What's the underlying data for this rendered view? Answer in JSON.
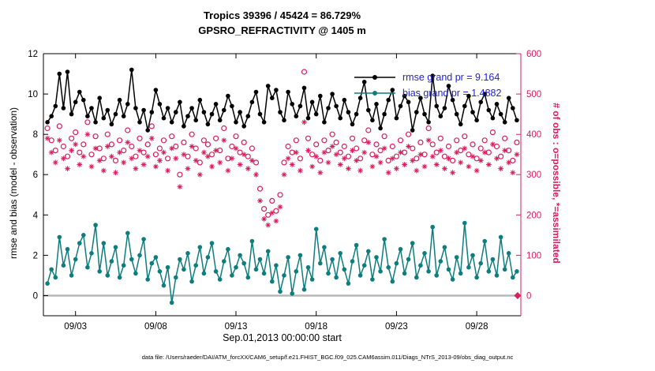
{
  "titles": {
    "line1": "Tropics 39396 / 45424 = 86.729%",
    "line2": "GPSRO_REFRACTIVITY @ 1405 m"
  },
  "caption": "data file: /Users/raeder/DAI/ATM_forcXX/CAM6_setup/f.e21.FHIST_BGC.f09_025.CAM6assim.011/Diags_NTrS_2013-09/obs_diag_output.nc",
  "colors": {
    "rmse": "#000000",
    "bias": "#0e7d7d",
    "obs": "#d81e5b",
    "legend_text": "#2222cc",
    "zero_line": "#b8b8b8",
    "axis": "#000000"
  },
  "chart_data": {
    "type": "line",
    "title": "Tropics 39396 / 45424 = 86.729% | GPSRO_REFRACTIVITY @ 1405 m",
    "xlabel": "Sep.01,2013 00:00:00 start",
    "ylabel_left": "rmse and bias (model - observation)",
    "ylabel_right": "# of obs : o=possible, *=assimilated",
    "grid": false,
    "legend_position": "upper right inside",
    "xlim": [
      1,
      30.75
    ],
    "ylim_left": [
      -1,
      12
    ],
    "ylim_right": [
      -50,
      600
    ],
    "x_start": 1.25,
    "x_step": 0.25,
    "xticks": [
      {
        "value": 3,
        "label": "09/03"
      },
      {
        "value": 8,
        "label": "09/08"
      },
      {
        "value": 13,
        "label": "09/13"
      },
      {
        "value": 18,
        "label": "09/18"
      },
      {
        "value": 23,
        "label": "09/23"
      },
      {
        "value": 28,
        "label": "09/28"
      }
    ],
    "yticks_left": [
      0,
      2,
      4,
      6,
      8,
      10,
      12
    ],
    "yticks_right": [
      0,
      100,
      200,
      300,
      400,
      500,
      600
    ],
    "legend": [
      {
        "label": "rmse grand pr = 9.164",
        "series": "rmse"
      },
      {
        "label": "bias grand pr = 1.4882",
        "series": "bias"
      }
    ],
    "zero_line": 0,
    "end_marker": {
      "day": 30.55,
      "value": 0
    },
    "series": [
      {
        "name": "rmse",
        "axis": "left",
        "marker": "dot",
        "line": true,
        "values": [
          8.6,
          8.9,
          9.4,
          11.0,
          9.3,
          11.1,
          9.0,
          9.6,
          10.1,
          9.7,
          8.9,
          9.3,
          8.6,
          9.8,
          8.8,
          9.2,
          8.5,
          9.0,
          9.7,
          8.9,
          9.5,
          11.2,
          9.3,
          8.6,
          9.2,
          8.2,
          9.1,
          10.2,
          9.5,
          8.8,
          9.3,
          8.6,
          9.1,
          9.6,
          8.4,
          8.9,
          9.3,
          8.7,
          9.7,
          9.1,
          8.5,
          9.0,
          9.5,
          8.7,
          9.2,
          9.9,
          9.4,
          8.6,
          9.1,
          8.4,
          8.9,
          9.6,
          10.1,
          9.0,
          8.6,
          10.4,
          9.8,
          10.2,
          9.1,
          8.7,
          10.1,
          9.5,
          8.9,
          9.4,
          10.3,
          8.8,
          9.6,
          9.0,
          9.9,
          8.6,
          9.3,
          10.0,
          9.4,
          8.8,
          9.7,
          9.1,
          8.5,
          9.0,
          9.8,
          10.6,
          9.2,
          8.7,
          9.5,
          8.3,
          9.0,
          9.7,
          10.2,
          8.8,
          9.4,
          9.9,
          9.6,
          8.2,
          9.1,
          9.8,
          9.0,
          8.6,
          10.9,
          9.4,
          8.9,
          9.3,
          10.4,
          9.7,
          9.0,
          8.5,
          9.4,
          9.9,
          9.1,
          8.7,
          9.6,
          10.0,
          9.2,
          8.8,
          9.5,
          9.0,
          8.6,
          9.8,
          9.3,
          8.7
        ]
      },
      {
        "name": "bias",
        "axis": "left",
        "marker": "dot",
        "line": true,
        "values": [
          0.6,
          1.3,
          0.9,
          2.9,
          1.5,
          2.3,
          1.0,
          1.8,
          2.6,
          3.0,
          1.4,
          2.1,
          3.5,
          1.2,
          2.6,
          1.0,
          1.7,
          2.4,
          0.9,
          1.5,
          3.1,
          1.8,
          1.1,
          2.0,
          2.8,
          0.8,
          1.6,
          1.9,
          1.2,
          0.5,
          1.4,
          -0.35,
          0.9,
          1.8,
          1.3,
          2.1,
          0.7,
          1.5,
          2.4,
          1.1,
          1.9,
          2.6,
          1.2,
          0.8,
          1.7,
          2.3,
          1.0,
          1.4,
          2.0,
          1.6,
          0.9,
          2.7,
          1.3,
          1.8,
          1.1,
          2.2,
          0.7,
          1.5,
          0.2,
          1.0,
          1.9,
          0.1,
          1.2,
          2.0,
          0.3,
          1.4,
          0.8,
          3.3,
          1.6,
          2.4,
          1.1,
          1.8,
          0.9,
          2.1,
          1.3,
          0.6,
          1.7,
          2.5,
          1.0,
          1.5,
          2.2,
          0.8,
          1.9,
          1.2,
          2.8,
          1.4,
          0.7,
          1.6,
          2.3,
          1.1,
          1.8,
          2.6,
          0.9,
          1.5,
          2.1,
          1.2,
          3.4,
          1.0,
          1.7,
          2.4,
          1.3,
          0.8,
          1.9,
          1.1,
          3.6,
          1.4,
          2.0,
          0.9,
          1.6,
          2.7,
          1.2,
          1.8,
          1.0,
          2.9,
          1.3,
          2.1,
          0.9,
          1.2
        ]
      },
      {
        "name": "possible",
        "axis": "right",
        "marker": "open-circle",
        "line": false,
        "values": [
          415,
          385,
          360,
          420,
          370,
          345,
          390,
          405,
          355,
          375,
          430,
          350,
          395,
          365,
          340,
          400,
          375,
          335,
          385,
          360,
          410,
          370,
          345,
          390,
          355,
          375,
          420,
          350,
          365,
          385,
          340,
          395,
          370,
          300,
          380,
          345,
          400,
          365,
          330,
          385,
          375,
          350,
          390,
          360,
          415,
          340,
          370,
          395,
          355,
          380,
          345,
          365,
          330,
          265,
          215,
          200,
          235,
          210,
          250,
          330,
          370,
          355,
          385,
          340,
          555,
          390,
          350,
          375,
          335,
          385,
          360,
          400,
          380,
          355,
          370,
          345,
          390,
          365,
          340,
          385,
          410,
          350,
          375,
          360,
          395,
          335,
          370,
          345,
          385,
          355,
          400,
          365,
          340,
          380,
          350,
          415,
          375,
          355,
          390,
          345,
          370,
          335,
          385,
          360,
          395,
          350,
          375,
          340,
          365,
          385,
          355,
          405,
          370,
          345,
          390,
          360,
          335,
          380
        ]
      },
      {
        "name": "assimilated",
        "axis": "right",
        "marker": "asterisk",
        "line": false,
        "values": [
          390,
          355,
          330,
          385,
          340,
          315,
          360,
          375,
          325,
          345,
          400,
          320,
          365,
          335,
          310,
          370,
          345,
          305,
          355,
          330,
          380,
          340,
          315,
          360,
          325,
          345,
          390,
          320,
          335,
          355,
          310,
          365,
          340,
          270,
          350,
          315,
          370,
          335,
          300,
          355,
          345,
          320,
          360,
          330,
          385,
          310,
          340,
          365,
          325,
          350,
          315,
          335,
          300,
          235,
          190,
          175,
          205,
          185,
          220,
          300,
          340,
          325,
          355,
          310,
          430,
          360,
          320,
          345,
          305,
          355,
          330,
          370,
          350,
          325,
          340,
          315,
          360,
          335,
          310,
          355,
          380,
          320,
          345,
          330,
          365,
          305,
          340,
          315,
          355,
          325,
          370,
          335,
          310,
          350,
          320,
          385,
          345,
          325,
          360,
          315,
          340,
          305,
          355,
          330,
          365,
          320,
          345,
          310,
          335,
          355,
          325,
          375,
          340,
          315,
          360,
          330,
          305,
          350
        ]
      }
    ]
  }
}
